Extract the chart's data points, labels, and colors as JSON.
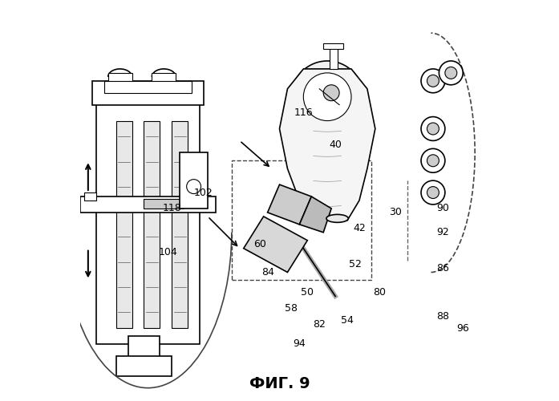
{
  "figure_label": "ФИГ. 9",
  "background_color": "#ffffff",
  "line_color": "#000000",
  "fig_width": 6.97,
  "fig_height": 5.0,
  "dpi": 100,
  "label_fontsize": 14,
  "label_fontstyle": "bold"
}
